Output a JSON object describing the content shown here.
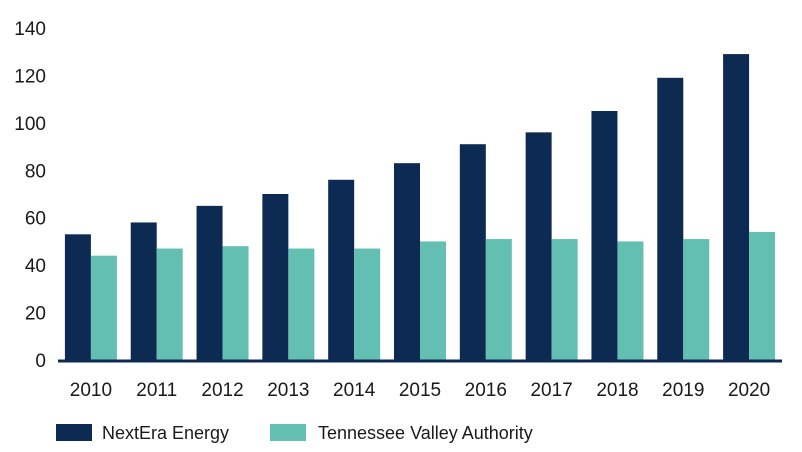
{
  "chart_data": {
    "type": "bar",
    "title": "",
    "xlabel": "",
    "ylabel": "",
    "categories": [
      "2010",
      "2011",
      "2012",
      "2013",
      "2014",
      "2015",
      "2016",
      "2017",
      "2018",
      "2019",
      "2020"
    ],
    "series": [
      {
        "name": "NextEra Energy",
        "color": "#0d2b52",
        "values": [
          53,
          58,
          65,
          70,
          76,
          83,
          91,
          96,
          105,
          119,
          129
        ]
      },
      {
        "name": "Tennessee Valley Authority",
        "color": "#63bfb1",
        "values": [
          44,
          47,
          48,
          47,
          47,
          50,
          51,
          51,
          50,
          51,
          54
        ]
      }
    ],
    "ylim": [
      0,
      140
    ],
    "yticks": [
      0,
      20,
      40,
      60,
      80,
      100,
      120,
      140
    ],
    "grid": false,
    "legend_position": "bottom-left",
    "baseline_color": "#0d2b52"
  }
}
